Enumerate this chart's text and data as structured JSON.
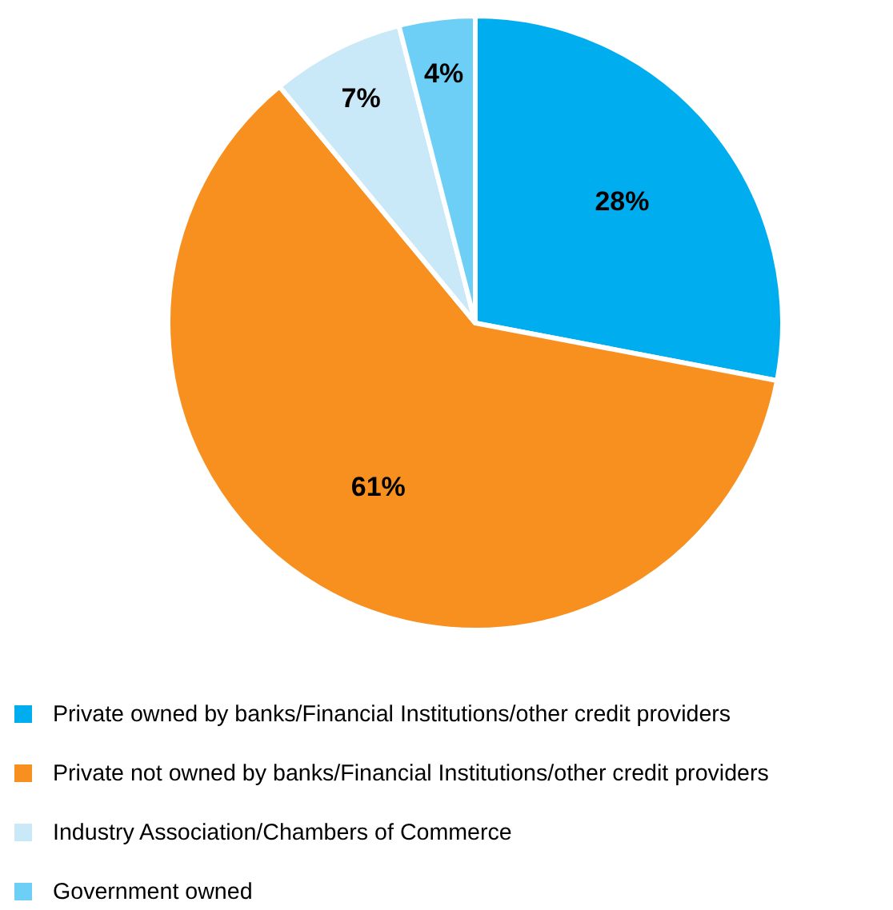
{
  "chart_data": {
    "type": "pie",
    "categories": [
      "Private owned by banks/Financial Institutions/other credit providers",
      "Private not owned by banks/Financial Institutions/other credit providers",
      "Industry Association/Chambers of Commerce",
      "Government owned"
    ],
    "values": [
      28,
      61,
      7,
      4
    ],
    "value_labels": [
      "28%",
      "61%",
      "7%",
      "4%"
    ],
    "colors": [
      "#00aeef",
      "#f7901e",
      "#c9e8f8",
      "#6dcff6"
    ],
    "legend": "bottom"
  }
}
